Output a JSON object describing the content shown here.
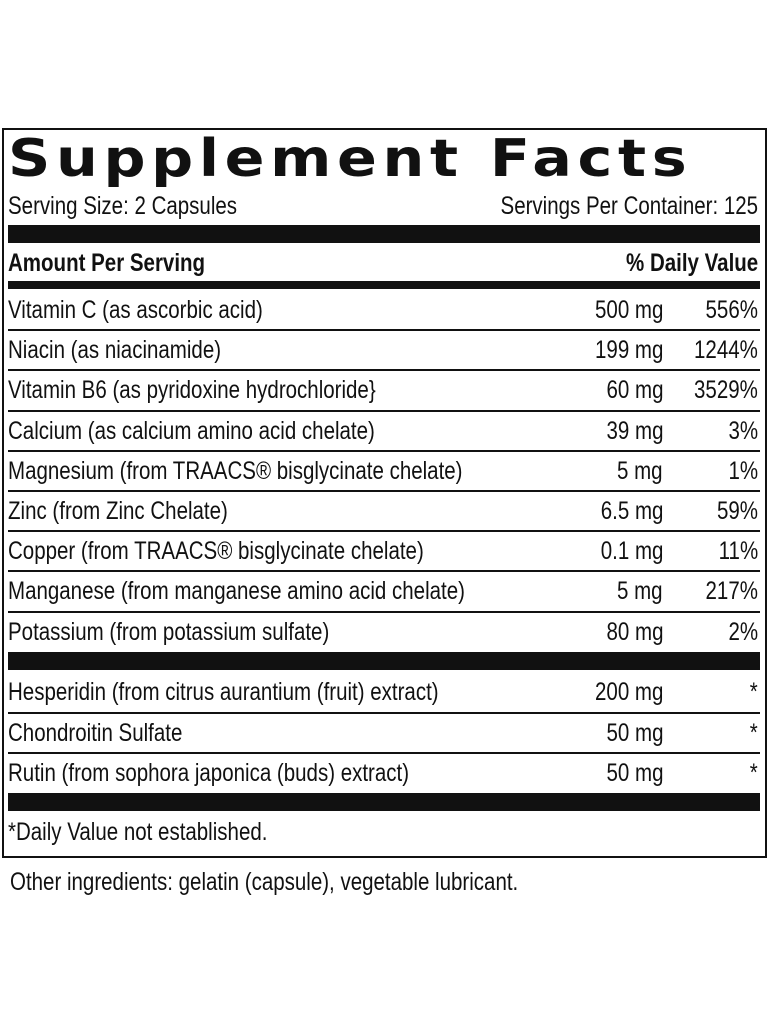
{
  "title": "Supplement Facts",
  "serving_size": "Serving Size: 2 Capsules",
  "servings_per_container": "Servings Per Container: 125",
  "header": {
    "amount": "Amount Per Serving",
    "dv": "% Daily Value"
  },
  "nutrients": [
    {
      "name": "Vitamin C (as ascorbic acid)",
      "amount": "500 mg",
      "dv": "556%"
    },
    {
      "name": "Niacin (as niacinamide)",
      "amount": "199 mg",
      "dv": "1244%"
    },
    {
      "name": "Vitamin B6 (as pyridoxine hydrochloride}",
      "amount": "60 mg",
      "dv": "3529%"
    },
    {
      "name": "Calcium (as calcium amino acid chelate)",
      "amount": "39 mg",
      "dv": "3%"
    },
    {
      "name": "Magnesium (from TRAACS® bisglycinate chelate)",
      "amount": "5 mg",
      "dv": "1%"
    },
    {
      "name": "Zinc (from Zinc Chelate)",
      "amount": "6.5 mg",
      "dv": "59%"
    },
    {
      "name": "Copper (from TRAACS® bisglycinate chelate)",
      "amount": "0.1 mg",
      "dv": "11%"
    },
    {
      "name": "Manganese (from manganese amino acid chelate)",
      "amount": "5 mg",
      "dv": "217%"
    },
    {
      "name": "Potassium (from potassium sulfate)",
      "amount": "80 mg",
      "dv": "2%"
    }
  ],
  "other": [
    {
      "name": "Hesperidin (from citrus aurantium (fruit) extract)",
      "amount": "200 mg",
      "dv": "*"
    },
    {
      "name": "Chondroitin Sulfate",
      "amount": "50 mg",
      "dv": "*"
    },
    {
      "name": "Rutin (from sophora japonica (buds) extract)",
      "amount": "50 mg",
      "dv": "*"
    }
  ],
  "footnote": "*Daily Value not established.",
  "other_ingredients": "Other ingredients: gelatin (capsule), vegetable lubricant."
}
